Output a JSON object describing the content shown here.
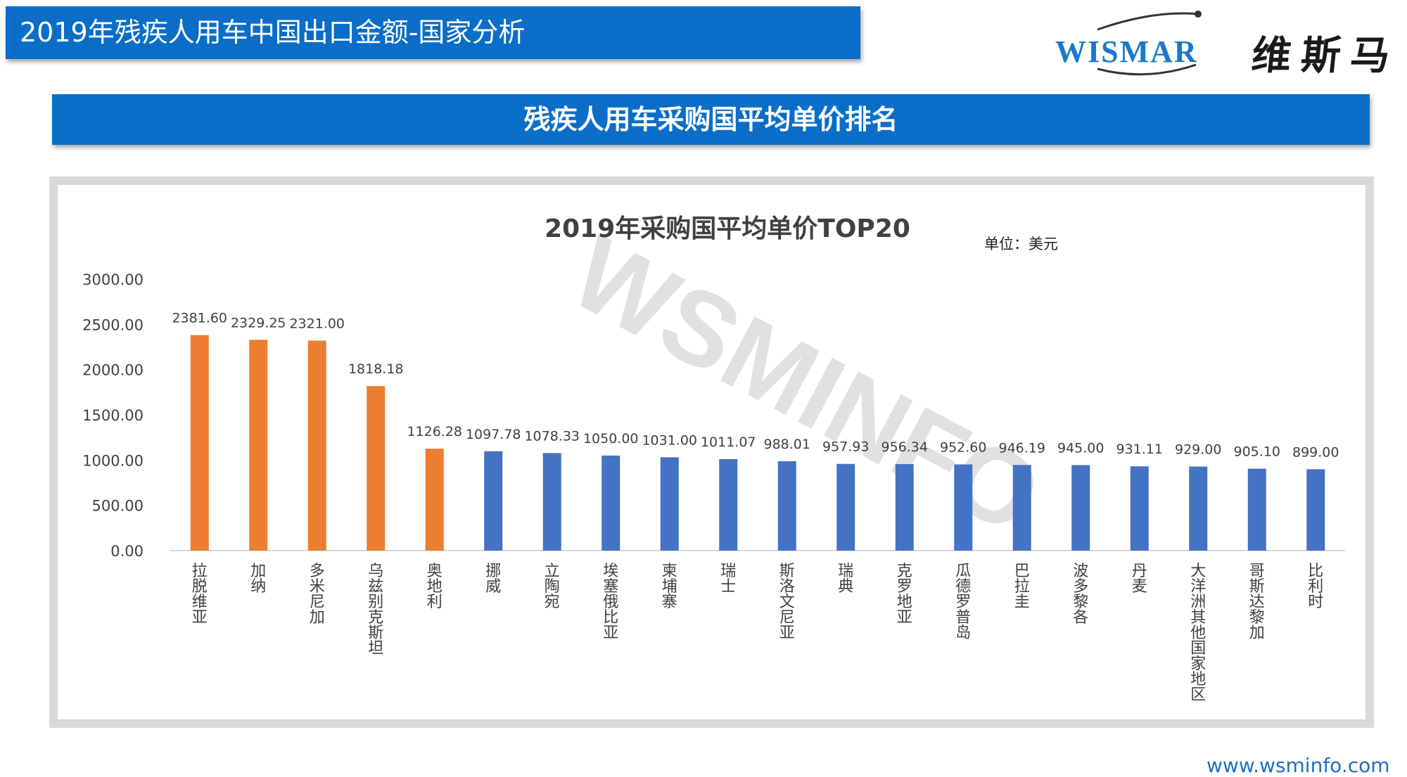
{
  "header": {
    "title": "2019年残疾人用车中国出口金额-国家分析"
  },
  "logo": {
    "brand_en": "WISMAR",
    "brand_cn": "维斯马"
  },
  "section": {
    "title": "残疾人用车采购国平均单价排名"
  },
  "watermark": "WSMINFO",
  "footer": {
    "url": "www.wsminfo.com"
  },
  "colors": {
    "primary_blue": "#0a6ec8",
    "bar_orange": "#ed7d31",
    "bar_blue": "#4472c4"
  },
  "chart_data": {
    "type": "bar",
    "title": "2019年采购国平均单价TOP20",
    "unit_label": "单位：美元",
    "ylim": [
      0,
      3000
    ],
    "yticks": [
      "0.00",
      "500.00",
      "1000.00",
      "1500.00",
      "2000.00",
      "2500.00",
      "3000.00"
    ],
    "grid": false,
    "categories": [
      "拉脱维亚",
      "加纳",
      "多米尼加",
      "乌兹别克斯坦",
      "奥地利",
      "挪威",
      "立陶宛",
      "埃塞俄比亚",
      "柬埔寨",
      "瑞士",
      "斯洛文尼亚",
      "瑞典",
      "克罗地亚",
      "瓜德罗普岛",
      "巴拉圭",
      "波多黎各",
      "丹麦",
      "大洋洲其他国家地区",
      "哥斯达黎加",
      "比利时"
    ],
    "values": [
      2381.6,
      2329.25,
      2321.0,
      1818.18,
      1126.28,
      1097.78,
      1078.33,
      1050.0,
      1031.0,
      1011.07,
      988.01,
      957.93,
      956.34,
      952.6,
      946.19,
      945.0,
      931.11,
      929.0,
      905.1,
      899.0
    ],
    "value_labels": [
      "2381.60",
      "2329.25",
      "2321.00",
      "1818.18",
      "1126.28",
      "1097.78",
      "1078.33",
      "1050.00",
      "1031.00",
      "1011.07",
      "988.01",
      "957.93",
      "956.34",
      "952.60",
      "946.19",
      "945.00",
      "931.11",
      "929.00",
      "905.10",
      "899.00"
    ],
    "highlight_count": 5
  }
}
